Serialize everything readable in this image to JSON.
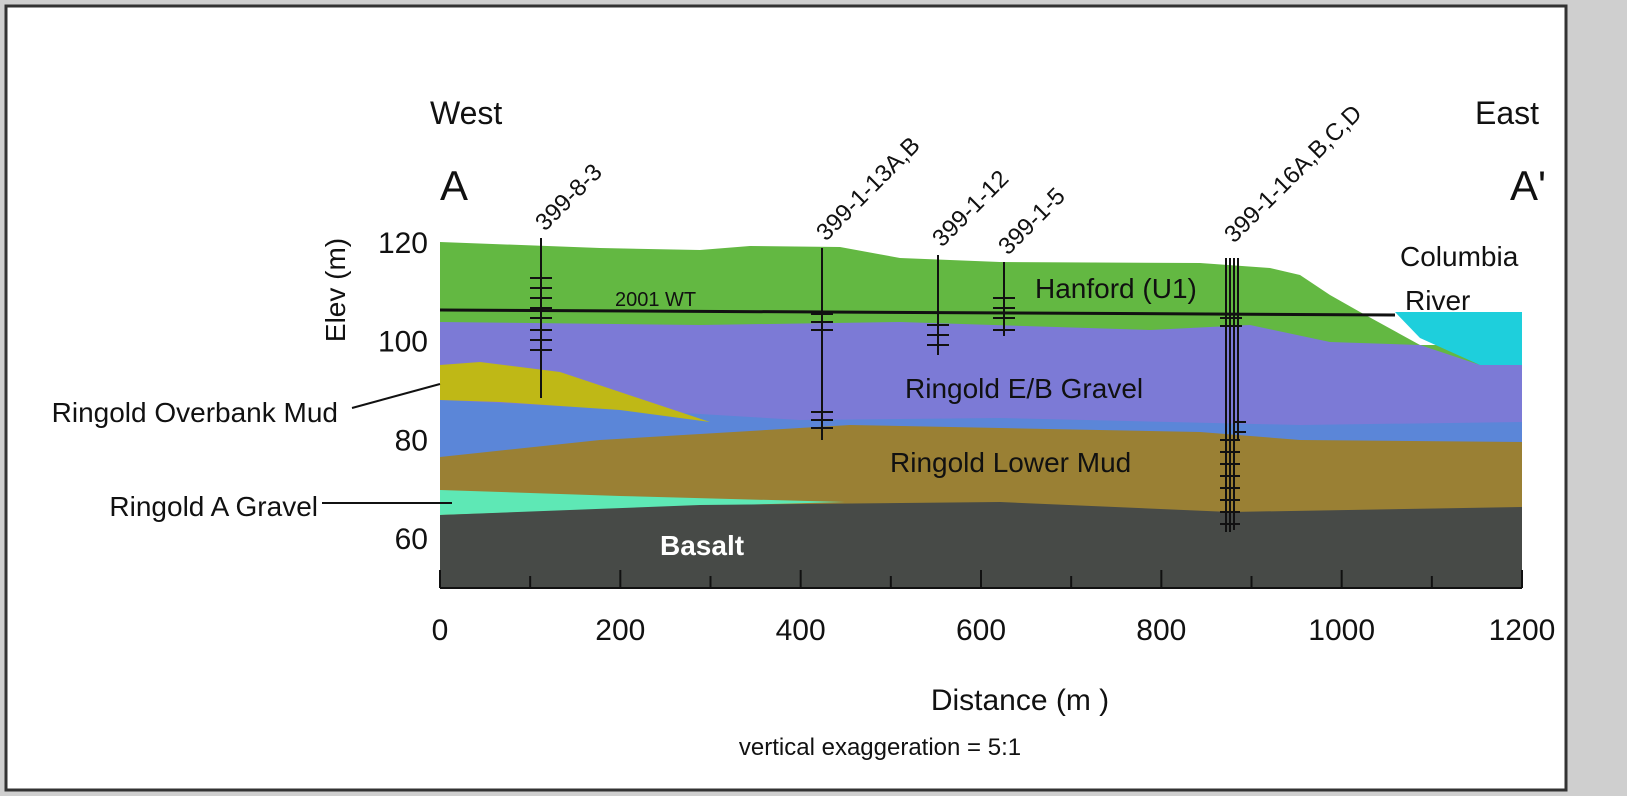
{
  "header": {
    "west": "West",
    "east": "East",
    "a": "A",
    "a_prime": "A'"
  },
  "river": {
    "line1": "Columbia",
    "line2": "River"
  },
  "wells": [
    "399-8-3",
    "399-1-13A,B",
    "399-1-12",
    "399-1-5",
    "399-1-16A,B,C,D"
  ],
  "units": {
    "hanford": "Hanford (U1)",
    "eb_gravel": "Ringold E/B Gravel",
    "lower_mud": "Ringold Lower Mud",
    "basalt": "Basalt",
    "overbank_mud": "Ringold Overbank Mud",
    "a_gravel": "Ringold A Gravel"
  },
  "water_table": "2001 WT",
  "x_axis": {
    "label": "Distance (m )",
    "ticks": [
      0,
      200,
      400,
      600,
      800,
      1000,
      1200
    ]
  },
  "y_axis": {
    "label": "Elev (m)",
    "ticks": [
      60,
      80,
      100,
      120
    ]
  },
  "note": "vertical exaggeration = 5:1"
}
